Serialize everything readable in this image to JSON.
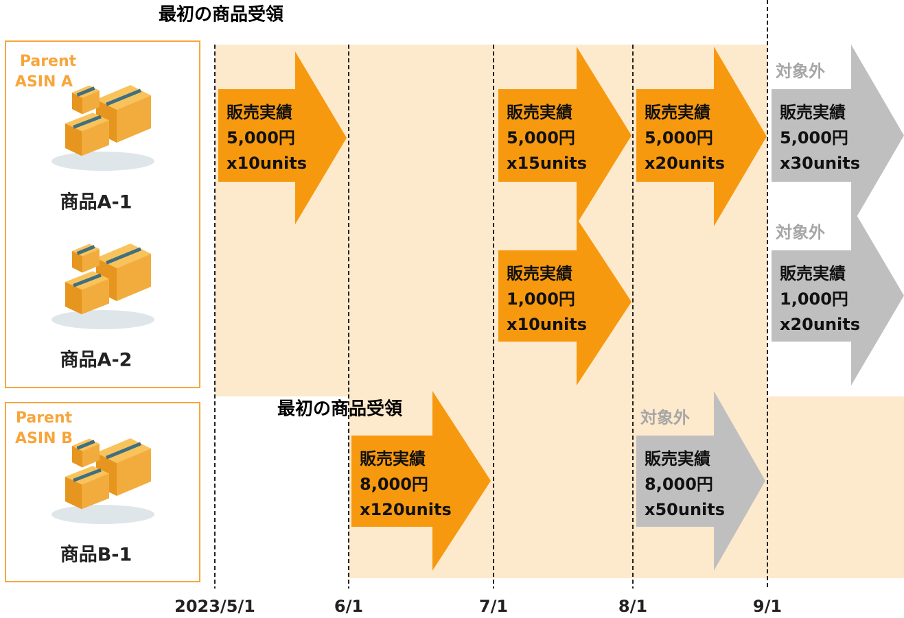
{
  "receipts": [
    "最初の商品受領",
    "最初の商品受領"
  ],
  "groups": [
    {
      "parent": "Parent",
      "asin": "ASIN A",
      "products": [
        "商品A-1",
        "商品A-2"
      ]
    },
    {
      "parent": "Parent",
      "asin": "ASIN B",
      "products": [
        "商品B-1"
      ]
    }
  ],
  "dates": [
    "2023/5/1",
    "6/1",
    "7/1",
    "8/1",
    "9/1"
  ],
  "arrows": [
    {
      "label": "販売実績",
      "amount": "5,000円",
      "units": "x10units"
    },
    {
      "label": "販売実績",
      "amount": "5,000円",
      "units": "x15units"
    },
    {
      "label": "販売実績",
      "amount": "5,000円",
      "units": "x20units"
    },
    {
      "status": "対象外",
      "label": "販売実績",
      "amount": "5,000円",
      "units": "x30units"
    },
    {
      "label": "販売実績",
      "amount": "1,000円",
      "units": "x10units"
    },
    {
      "status": "対象外",
      "label": "販売実績",
      "amount": "1,000円",
      "units": "x20units"
    },
    {
      "label": "販売実績",
      "amount": "8,000円",
      "units": "x120units"
    },
    {
      "status": "対象外",
      "label": "販売実績",
      "amount": "8,000円",
      "units": "x50units"
    }
  ]
}
